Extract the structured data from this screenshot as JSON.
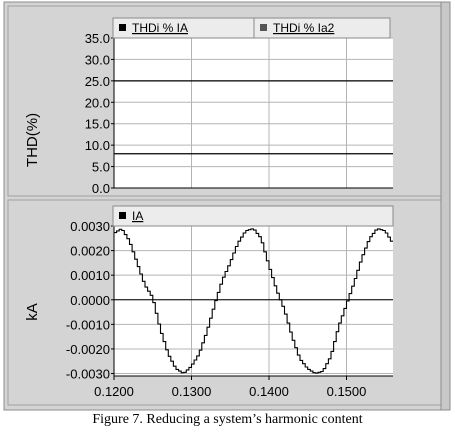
{
  "caption": "Figure 7. Reducing a system’s harmonic content",
  "colors": {
    "panel_bg": "#d4d4d4",
    "plot_bg": "#ffffff",
    "grid": "#b4b4b4",
    "trace": "#000000",
    "legend_bg": "#ececec"
  },
  "chart_data": [
    {
      "type": "line",
      "title": "",
      "ylabel": "THD(%)",
      "xlabel": "",
      "ylim": [
        0,
        35
      ],
      "yticks": [
        "35.0",
        "30.0",
        "25.0",
        "20.0",
        "15.0",
        "10.0",
        "5.0",
        "0.0"
      ],
      "grid": true,
      "legend_position": "top",
      "legend": [
        "THDi % IA",
        "THDi % Ia2"
      ],
      "series": [
        {
          "name": "THDi % IA",
          "y_constant": 8.0,
          "marker": "square-black"
        },
        {
          "name": "THDi % Ia2",
          "y_constant": 25.0,
          "marker": "square-gray"
        }
      ]
    },
    {
      "type": "line",
      "title": "",
      "ylabel": "kA",
      "xlabel": "",
      "ylim": [
        -0.0031,
        0.003
      ],
      "xlim": [
        0.12,
        0.156
      ],
      "yticks": [
        "0.0030",
        "0.0020",
        "0.0010",
        "0.0000",
        "-0.0010",
        "-0.0020",
        "-0.0030"
      ],
      "xticks": [
        "0.1200",
        "0.1300",
        "0.1400",
        "0.1500"
      ],
      "grid": true,
      "legend_position": "top",
      "legend": [
        "IA"
      ],
      "series": [
        {
          "name": "IA",
          "marker": "square-black",
          "x": [
            0.12,
            0.121,
            0.122,
            0.123,
            0.124,
            0.125,
            0.126,
            0.127,
            0.128,
            0.129,
            0.13,
            0.131,
            0.132,
            0.133,
            0.134,
            0.135,
            0.136,
            0.137,
            0.138,
            0.139,
            0.14,
            0.141,
            0.142,
            0.143,
            0.144,
            0.145,
            0.146,
            0.147,
            0.148,
            0.149,
            0.15,
            0.151,
            0.152,
            0.153,
            0.154,
            0.155,
            0.156
          ],
          "y": [
            0.0027,
            0.0029,
            0.0024,
            0.0015,
            0.0006,
            0.0001,
            -0.0012,
            -0.0022,
            -0.0028,
            -0.003,
            -0.0027,
            -0.0022,
            -0.0013,
            -0.0002,
            0.0008,
            0.0015,
            0.0023,
            0.0028,
            0.0029,
            0.0025,
            0.0014,
            0.0004,
            -0.0004,
            -0.0015,
            -0.0024,
            -0.0028,
            -0.003,
            -0.0029,
            -0.0023,
            -0.0011,
            -0.0002,
            0.0007,
            0.0017,
            0.0025,
            0.0029,
            0.0028,
            0.0023
          ]
        }
      ]
    }
  ]
}
